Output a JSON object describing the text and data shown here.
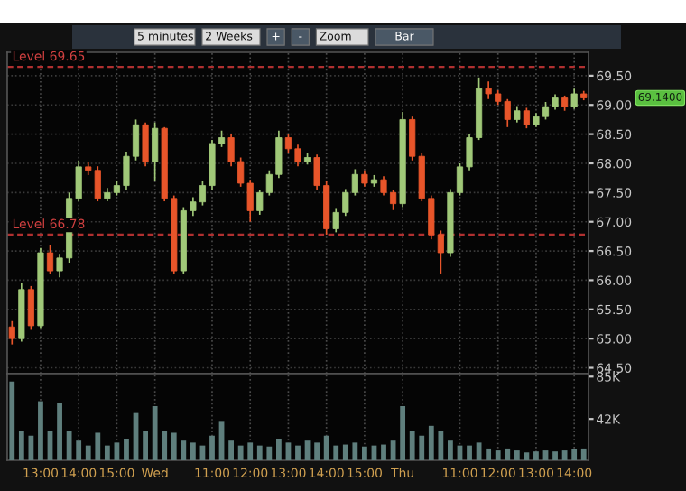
{
  "chart_data": [
    {
      "type": "other",
      "annotations": [
        "5 minutes",
        "2 Weeks",
        "+",
        "-",
        "Zoom",
        "Bar"
      ]
    },
    {
      "type": "candlestick",
      "tick_labels": "y",
      "grid": true,
      "categories": [
        null,
        null,
        null,
        null,
        null,
        null,
        null,
        null,
        null,
        null,
        null,
        null,
        null,
        null,
        null,
        null,
        null,
        null,
        null,
        null,
        null,
        null,
        null,
        null,
        null,
        null,
        null,
        null,
        null,
        null,
        null,
        null,
        null,
        null,
        null,
        null,
        null,
        null,
        null,
        null,
        null,
        null,
        null,
        null,
        null,
        null,
        null,
        null,
        null,
        null,
        null,
        null,
        null,
        null,
        null,
        null,
        null,
        null,
        null,
        null,
        null
      ],
      "ohlc": [
        [
          65.2,
          65.3,
          64.9,
          65.0
        ],
        [
          65.0,
          65.95,
          64.95,
          65.84
        ],
        [
          65.84,
          65.9,
          65.15,
          65.22
        ],
        [
          65.22,
          66.55,
          65.18,
          66.47
        ],
        [
          66.47,
          66.6,
          66.1,
          66.16
        ],
        [
          66.16,
          66.45,
          66.05,
          66.38
        ],
        [
          66.38,
          67.5,
          66.3,
          67.4
        ],
        [
          67.4,
          68.05,
          67.35,
          67.94
        ],
        [
          67.94,
          68.02,
          67.8,
          67.88
        ],
        [
          67.88,
          67.95,
          67.35,
          67.4
        ],
        [
          67.4,
          67.58,
          67.35,
          67.5
        ],
        [
          67.5,
          67.7,
          67.45,
          67.62
        ],
        [
          67.62,
          68.2,
          67.55,
          68.12
        ],
        [
          68.12,
          68.75,
          68.05,
          68.66
        ],
        [
          68.66,
          68.7,
          67.95,
          68.03
        ],
        [
          68.03,
          68.7,
          67.7,
          68.6
        ],
        [
          68.6,
          68.62,
          67.35,
          67.4
        ],
        [
          67.4,
          67.45,
          66.1,
          66.16
        ],
        [
          66.16,
          67.25,
          66.1,
          67.19
        ],
        [
          67.19,
          67.42,
          67.1,
          67.34
        ],
        [
          67.34,
          67.7,
          67.28,
          67.62
        ],
        [
          67.62,
          68.4,
          67.55,
          68.34
        ],
        [
          68.34,
          68.56,
          68.28,
          68.44
        ],
        [
          68.44,
          68.5,
          67.95,
          68.03
        ],
        [
          68.03,
          68.1,
          67.6,
          67.66
        ],
        [
          67.66,
          67.72,
          67.0,
          67.19
        ],
        [
          67.19,
          67.55,
          67.12,
          67.5
        ],
        [
          67.5,
          67.88,
          67.45,
          67.81
        ],
        [
          67.81,
          68.56,
          67.75,
          68.44
        ],
        [
          68.44,
          68.5,
          68.18,
          68.25
        ],
        [
          68.25,
          68.32,
          67.95,
          68.03
        ],
        [
          68.03,
          68.18,
          67.98,
          68.1
        ],
        [
          68.1,
          68.15,
          67.55,
          67.62
        ],
        [
          67.62,
          67.7,
          66.78,
          66.88
        ],
        [
          66.88,
          67.22,
          66.82,
          67.16
        ],
        [
          67.16,
          67.56,
          67.1,
          67.5
        ],
        [
          67.5,
          67.9,
          67.45,
          67.81
        ],
        [
          67.81,
          67.88,
          67.6,
          67.66
        ],
        [
          67.66,
          67.8,
          67.6,
          67.72
        ],
        [
          67.72,
          67.78,
          67.45,
          67.5
        ],
        [
          67.5,
          67.55,
          67.2,
          67.31
        ],
        [
          67.31,
          68.88,
          67.25,
          68.75
        ],
        [
          68.75,
          68.8,
          68.05,
          68.12
        ],
        [
          68.12,
          68.18,
          67.35,
          67.4
        ],
        [
          67.4,
          67.45,
          66.7,
          66.78
        ],
        [
          66.78,
          66.85,
          66.1,
          66.47
        ],
        [
          66.47,
          67.56,
          66.4,
          67.5
        ],
        [
          67.5,
          68.0,
          67.45,
          67.94
        ],
        [
          67.94,
          68.5,
          67.88,
          68.44
        ],
        [
          68.44,
          69.47,
          68.4,
          69.28
        ],
        [
          69.28,
          69.4,
          69.1,
          69.19
        ],
        [
          69.19,
          69.25,
          69.0,
          69.06
        ],
        [
          69.06,
          69.1,
          68.62,
          68.75
        ],
        [
          68.75,
          68.98,
          68.7,
          68.9
        ],
        [
          68.9,
          68.95,
          68.6,
          68.66
        ],
        [
          68.66,
          68.86,
          68.62,
          68.8
        ],
        [
          68.8,
          69.05,
          68.75,
          68.97
        ],
        [
          68.97,
          69.18,
          68.92,
          69.12
        ],
        [
          69.12,
          69.16,
          68.9,
          68.97
        ],
        [
          68.97,
          69.28,
          68.93,
          69.19
        ],
        [
          69.19,
          69.24,
          69.08,
          69.12
        ]
      ],
      "colors": [
        "#e8552a",
        "#a0c878",
        "#e8552a",
        "#a0c878",
        "#e8552a",
        "#a0c878",
        "#a0c878",
        "#a0c878",
        "#e8552a",
        "#e8552a",
        "#a0c878",
        "#a0c878",
        "#a0c878",
        "#a0c878",
        "#e8552a",
        "#a0c878",
        "#e8552a",
        "#e8552a",
        "#a0c878",
        "#a0c878",
        "#a0c878",
        "#a0c878",
        "#a0c878",
        "#e8552a",
        "#e8552a",
        "#e8552a",
        "#a0c878",
        "#a0c878",
        "#a0c878",
        "#e8552a",
        "#e8552a",
        "#a0c878",
        "#e8552a",
        "#e8552a",
        "#a0c878",
        "#a0c878",
        "#a0c878",
        "#e8552a",
        "#a0c878",
        "#e8552a",
        "#e8552a",
        "#a0c878",
        "#e8552a",
        "#e8552a",
        "#e8552a",
        "#e8552a",
        "#a0c878",
        "#a0c878",
        "#a0c878",
        "#a0c878",
        "#e8552a",
        "#e8552a",
        "#e8552a",
        "#a0c878",
        "#e8552a",
        "#a0c878",
        "#a0c878",
        "#a0c878",
        "#e8552a",
        "#a0c878",
        "#e8552a"
      ],
      "ylim": [
        64.4,
        69.9
      ],
      "yticks": [
        {
          "value": 64.5,
          "label": "64.50"
        },
        {
          "value": 65,
          "label": "65.00"
        },
        {
          "value": 65.5,
          "label": "65.50"
        },
        {
          "value": 66,
          "label": "66.00"
        },
        {
          "value": 66.5,
          "label": "66.50"
        },
        {
          "value": 67,
          "label": "67.00"
        },
        {
          "value": 67.5,
          "label": "67.50"
        },
        {
          "value": 68,
          "label": "68.00"
        },
        {
          "value": 68.5,
          "label": "68.50"
        },
        {
          "value": 69,
          "label": "69.00"
        },
        {
          "value": 69.5,
          "label": "69.50"
        }
      ],
      "ref_lines": [
        {
          "axis": "y",
          "value": 69.65,
          "label": "Level 69.65",
          "color": "#b03030",
          "line_style": "dashed"
        },
        {
          "axis": "y",
          "value": 66.78,
          "label": "Level 66.78",
          "color": "#b03030",
          "line_style": "dashed"
        }
      ],
      "annotations": [
        "69.1400"
      ]
    },
    {
      "type": "bar",
      "grid": "x",
      "color": "#5f7f7d",
      "categories": [
        null,
        null,
        null,
        "13:00",
        null,
        null,
        null,
        "14:00",
        null,
        null,
        null,
        "15:00",
        null,
        null,
        null,
        "Wed",
        null,
        null,
        null,
        null,
        null,
        "11:00",
        null,
        null,
        null,
        "12:00",
        null,
        null,
        null,
        "13:00",
        null,
        null,
        null,
        "14:00",
        null,
        null,
        null,
        "15:00",
        null,
        null,
        null,
        "Thu",
        null,
        null,
        null,
        null,
        null,
        "11:00",
        null,
        null,
        null,
        "12:00",
        null,
        null,
        null,
        "13:00",
        null,
        null,
        null,
        "14:00",
        null
      ],
      "values": [
        80000,
        30000,
        25000,
        60000,
        30000,
        58000,
        30000,
        20000,
        15000,
        28000,
        15000,
        18000,
        22000,
        48000,
        30000,
        55000,
        30000,
        28000,
        20000,
        18000,
        15000,
        25000,
        40000,
        20000,
        15000,
        18000,
        15000,
        14000,
        22000,
        18000,
        15000,
        20000,
        18000,
        25000,
        15000,
        16000,
        18000,
        14000,
        15000,
        16000,
        20000,
        55000,
        30000,
        25000,
        35000,
        30000,
        20000,
        15000,
        15000,
        18000,
        12000,
        10000,
        12000,
        10000,
        8000,
        9000,
        10000,
        9000,
        10000,
        11000,
        12000
      ],
      "ylim": [
        0,
        88000
      ],
      "yticks": [
        {
          "value": 85000,
          "label": "85K"
        },
        {
          "value": 42000,
          "label": "42K"
        }
      ]
    }
  ]
}
